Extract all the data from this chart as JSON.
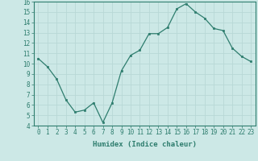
{
  "x": [
    0,
    1,
    2,
    3,
    4,
    5,
    6,
    7,
    8,
    9,
    10,
    11,
    12,
    13,
    14,
    15,
    16,
    17,
    18,
    19,
    20,
    21,
    22,
    23
  ],
  "y": [
    10.5,
    9.7,
    8.5,
    6.5,
    5.3,
    5.5,
    6.2,
    4.3,
    6.2,
    9.3,
    10.8,
    11.3,
    12.9,
    12.9,
    13.5,
    15.3,
    15.8,
    15.0,
    14.4,
    13.4,
    13.2,
    11.5,
    10.7,
    10.2
  ],
  "line_color": "#2e7d6e",
  "marker_color": "#2e7d6e",
  "bg_color": "#cce8e6",
  "grid_color": "#b8d8d6",
  "xlabel": "Humidex (Indice chaleur)",
  "ylim": [
    4,
    16
  ],
  "xlim": [
    -0.5,
    23.5
  ],
  "yticks": [
    4,
    5,
    6,
    7,
    8,
    9,
    10,
    11,
    12,
    13,
    14,
    15,
    16
  ],
  "xticks": [
    0,
    1,
    2,
    3,
    4,
    5,
    6,
    7,
    8,
    9,
    10,
    11,
    12,
    13,
    14,
    15,
    16,
    17,
    18,
    19,
    20,
    21,
    22,
    23
  ],
  "label_fontsize": 6.5,
  "tick_fontsize": 5.5
}
